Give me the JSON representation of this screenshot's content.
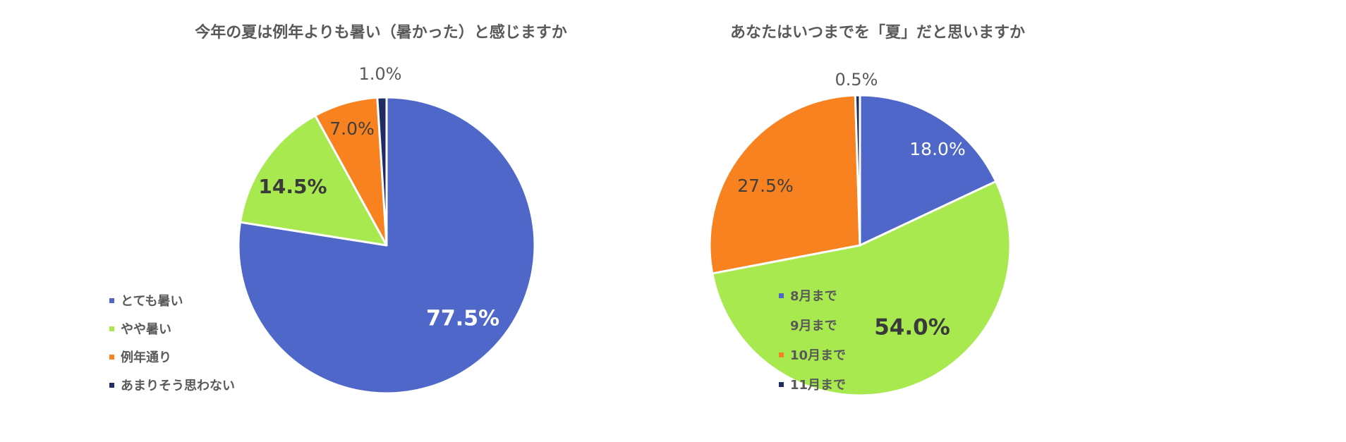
{
  "chart_data": [
    {
      "type": "pie",
      "title": "今年の夏は例年よりも暑い（暑かった）と感じますか",
      "series": [
        {
          "name": "とても暑い",
          "value": 77.5,
          "label": "77.5%",
          "color": "#4F67C9"
        },
        {
          "name": "やや暑い",
          "value": 14.5,
          "label": "14.5%",
          "color": "#A7E94F"
        },
        {
          "name": "例年通り",
          "value": 7.0,
          "label": "7.0%",
          "color": "#F7821F"
        },
        {
          "name": "あまりそう思わない",
          "value": 1.0,
          "label": "1.0%",
          "color": "#1F2D63"
        }
      ],
      "legend_position": "left"
    },
    {
      "type": "pie",
      "title": "あなたはいつまでを「夏」だと思いますか",
      "series": [
        {
          "name": "8月まで",
          "value": 18.0,
          "label": "18.0%",
          "color": "#4F67C9"
        },
        {
          "name": "9月まで",
          "value": 54.0,
          "label": "54.0%",
          "color": "#A7E94F"
        },
        {
          "name": "10月まで",
          "value": 27.5,
          "label": "27.5%",
          "color": "#F7821F"
        },
        {
          "name": "11月まで",
          "value": 0.5,
          "label": "0.5%",
          "color": "#1F2D63"
        }
      ],
      "legend_position": "left"
    }
  ]
}
